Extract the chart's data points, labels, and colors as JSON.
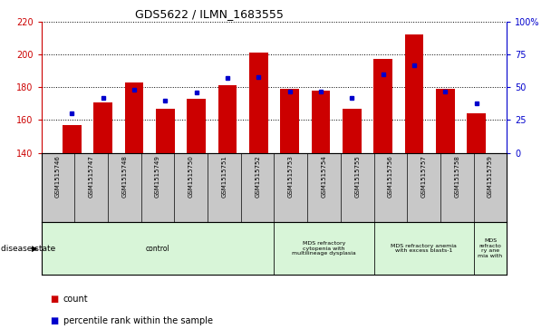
{
  "title": "GDS5622 / ILMN_1683555",
  "samples": [
    "GSM1515746",
    "GSM1515747",
    "GSM1515748",
    "GSM1515749",
    "GSM1515750",
    "GSM1515751",
    "GSM1515752",
    "GSM1515753",
    "GSM1515754",
    "GSM1515755",
    "GSM1515756",
    "GSM1515757",
    "GSM1515758",
    "GSM1515759"
  ],
  "counts": [
    157,
    171,
    183,
    167,
    173,
    181,
    201,
    179,
    178,
    167,
    197,
    212,
    179,
    164
  ],
  "percentiles": [
    30,
    42,
    48,
    40,
    46,
    57,
    58,
    47,
    47,
    42,
    60,
    67,
    47,
    38
  ],
  "y_min": 140,
  "y_max": 220,
  "y_ticks": [
    140,
    160,
    180,
    200,
    220
  ],
  "y2_ticks": [
    0,
    25,
    50,
    75,
    100
  ],
  "bar_color": "#cc0000",
  "dot_color": "#0000cc",
  "bg_color": "#ffffff",
  "tick_bg": "#c8c8c8",
  "disease_color": "#d8f5d8",
  "group_boundaries": [
    0,
    7,
    10,
    13,
    14
  ],
  "group_labels": [
    "control",
    "MDS refractory\ncytopenia with\nmultilineage dysplasia",
    "MDS refractory anemia\nwith excess blasts-1",
    "MDS\nrefracto\nry ane\nmia with"
  ]
}
